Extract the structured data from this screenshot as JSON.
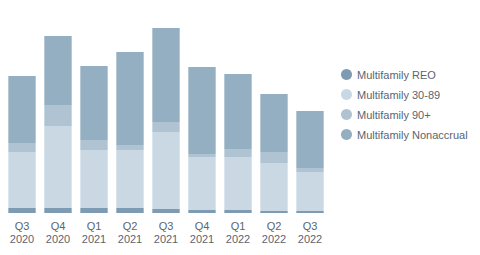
{
  "chart_data": {
    "type": "bar",
    "stacked": true,
    "legend": "right",
    "grid": false,
    "tick_labels": "x",
    "categories": [
      "Q3\n2020",
      "Q4\n2020",
      "Q1\n2021",
      "Q2\n2021",
      "Q3\n2021",
      "Q4\n2021",
      "Q1\n2022",
      "Q2\n2022",
      "Q3\n2022"
    ],
    "ylim": [
      0,
      200
    ],
    "series": [
      {
        "name": "Multifamily REO",
        "color": "#7d9bb3",
        "values": [
          5,
          5,
          5,
          5,
          4,
          3,
          3,
          2,
          2
        ]
      },
      {
        "name": "Multifamily 30-89",
        "color": "#c9d8e3",
        "values": [
          56,
          82,
          58,
          58,
          77,
          53,
          53,
          48,
          39
        ]
      },
      {
        "name": "Multifamily 90+",
        "color": "#afc3d2",
        "values": [
          9,
          21,
          10,
          5,
          10,
          3,
          8,
          11,
          4
        ]
      },
      {
        "name": "Multifamily Nonaccrual",
        "color": "#94aec2",
        "values": [
          67,
          69,
          74,
          93,
          94,
          87,
          75,
          58,
          57
        ]
      }
    ]
  }
}
